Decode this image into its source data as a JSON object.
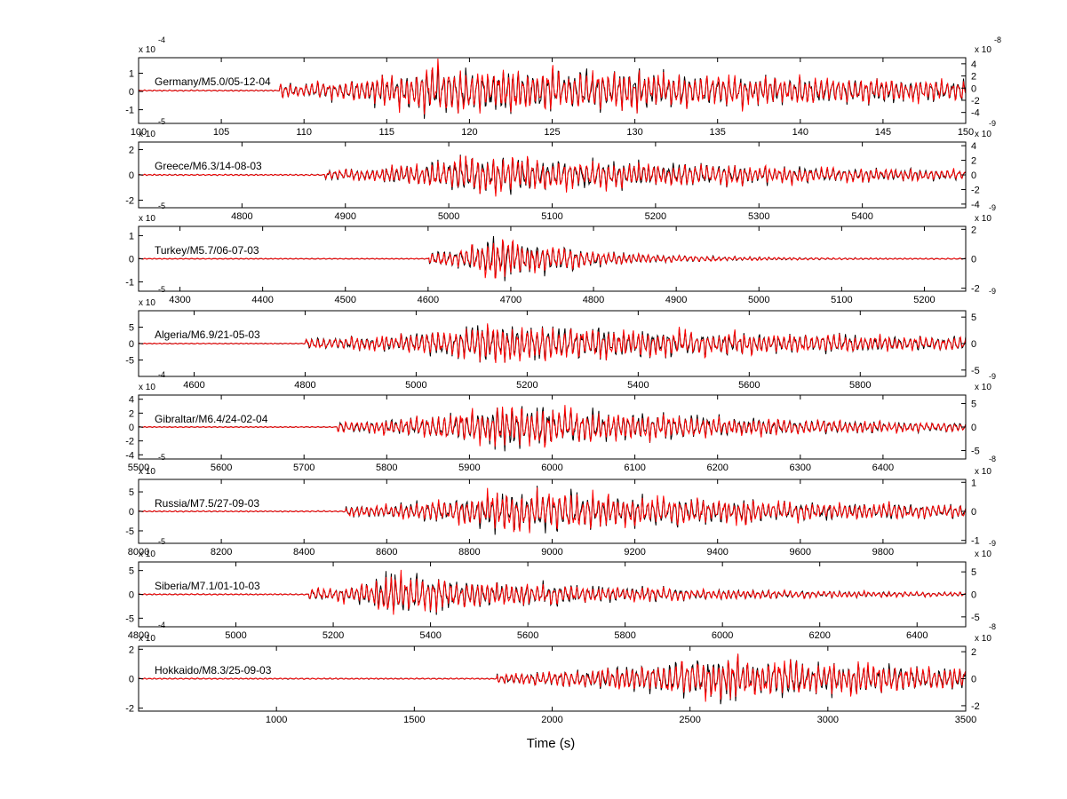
{
  "figure": {
    "xlabel": "Time (s)"
  },
  "colors": {
    "trace_a": "#000000",
    "trace_b": "#ff0000",
    "axis": "#000000",
    "background": "#ffffff"
  },
  "chart_data": [
    {
      "type": "line",
      "title": "Germany/M5.0/05-12-04",
      "xlim": [
        100,
        150
      ],
      "xticks": [
        100,
        105,
        110,
        115,
        120,
        125,
        130,
        135,
        140,
        145,
        150
      ],
      "left_axis": {
        "ylim": [
          -1.75,
          1.85
        ],
        "ticks": [
          -1,
          0,
          1
        ],
        "exp_top": "x 10",
        "exp_top_pow": "-4",
        "exp_bottom": "-5"
      },
      "right_axis": {
        "ylim": [
          -5.8,
          5.0
        ],
        "ticks": [
          -4,
          -2,
          0,
          2,
          4
        ],
        "exp_top": "x 10",
        "exp_top_pow": "-8",
        "exp_bottom": "-9"
      },
      "onset": 108.5,
      "peak": 118.0,
      "decay": 35,
      "noise": 0.02,
      "amp": 1.0
    },
    {
      "type": "line",
      "title": "Greece/M6.3/14-08-03",
      "xlim": [
        4700,
        5500
      ],
      "xticks": [
        4800,
        4900,
        5000,
        5100,
        5200,
        5300,
        5400
      ],
      "left_axis": {
        "ylim": [
          -2.6,
          2.6
        ],
        "ticks": [
          -2,
          0,
          2
        ],
        "exp_top": "x 10",
        "exp_top_pow": "",
        "exp_bottom": "-5"
      },
      "right_axis": {
        "ylim": [
          -4.5,
          4.5
        ],
        "ticks": [
          -4,
          -2,
          0,
          2,
          4
        ],
        "exp_top": "x 10",
        "exp_top_pow": "",
        "exp_bottom": "-9"
      },
      "onset": 4880,
      "peak": 5020,
      "decay": 350,
      "noise": 0.02,
      "amp": 0.75
    },
    {
      "type": "line",
      "title": "Turkey/M5.7/06-07-03",
      "xlim": [
        4250,
        5250
      ],
      "xticks": [
        4300,
        4400,
        4500,
        4600,
        4700,
        4800,
        4900,
        5000,
        5100,
        5200
      ],
      "left_axis": {
        "ylim": [
          -1.4,
          1.4
        ],
        "ticks": [
          -1,
          0,
          1
        ],
        "exp_top": "x 10",
        "exp_top_pow": "",
        "exp_bottom": "-5"
      },
      "right_axis": {
        "ylim": [
          -2.2,
          2.2
        ],
        "ticks": [
          -2,
          0,
          2
        ],
        "exp_top": "x 10",
        "exp_top_pow": "",
        "exp_bottom": "-9"
      },
      "onset": 4600,
      "peak": 4680,
      "decay": 110,
      "noise": 0.015,
      "amp": 0.95
    },
    {
      "type": "line",
      "title": "Algeria/M6.9/21-05-03",
      "xlim": [
        4500,
        5990
      ],
      "xticks": [
        4600,
        4800,
        5000,
        5200,
        5400,
        5600,
        5800
      ],
      "left_axis": {
        "ylim": [
          -10,
          10
        ],
        "ticks": [
          -5,
          0,
          5
        ],
        "exp_top": "x 10",
        "exp_top_pow": "",
        "exp_bottom": "-4"
      },
      "right_axis": {
        "ylim": [
          -6.2,
          6.2
        ],
        "ticks": [
          -5,
          0,
          5
        ],
        "exp_top": "",
        "exp_top_pow": "",
        "exp_bottom": "-9"
      },
      "onset": 4800,
      "peak": 5150,
      "decay": 700,
      "noise": 0.015,
      "amp": 0.8
    },
    {
      "type": "line",
      "title": "Gibraltar/M6.4/24-02-04",
      "xlim": [
        5500,
        6500
      ],
      "xticks": [
        5500,
        5600,
        5700,
        5800,
        5900,
        6000,
        6100,
        6200,
        6300,
        6400
      ],
      "left_axis": {
        "ylim": [
          -4.6,
          4.6
        ],
        "ticks": [
          -4,
          -2,
          0,
          2,
          4
        ],
        "exp_top": "x 10",
        "exp_top_pow": "",
        "exp_bottom": "-5"
      },
      "right_axis": {
        "ylim": [
          -6.8,
          6.8
        ],
        "ticks": [
          -5,
          0,
          5
        ],
        "exp_top": "x 10",
        "exp_top_pow": "",
        "exp_bottom": "-8"
      },
      "onset": 5740,
      "peak": 5940,
      "decay": 320,
      "noise": 0.015,
      "amp": 0.9
    },
    {
      "type": "line",
      "title": "Russia/M7.5/27-09-03",
      "xlim": [
        8000,
        10000
      ],
      "xticks": [
        8000,
        8200,
        8400,
        8600,
        8800,
        9000,
        9200,
        9400,
        9600,
        9800
      ],
      "left_axis": {
        "ylim": [
          -8.2,
          8.2
        ],
        "ticks": [
          -5,
          0,
          5
        ],
        "exp_top": "x 10",
        "exp_top_pow": "",
        "exp_bottom": "-5"
      },
      "right_axis": {
        "ylim": [
          -1.1,
          1.1
        ],
        "ticks": [
          -1,
          0,
          1
        ],
        "exp_top": "x 10",
        "exp_top_pow": "",
        "exp_bottom": "-9"
      },
      "onset": 8500,
      "peak": 8900,
      "decay": 900,
      "noise": 0.02,
      "amp": 0.85
    },
    {
      "type": "line",
      "title": "Siberia/M7.1/01-10-03",
      "xlim": [
        4800,
        6500
      ],
      "xticks": [
        4800,
        5000,
        5200,
        5400,
        5600,
        5800,
        6000,
        6200,
        6400
      ],
      "left_axis": {
        "ylim": [
          -6.8,
          6.8
        ],
        "ticks": [
          -5,
          0,
          5
        ],
        "exp_top": "x 10",
        "exp_top_pow": "",
        "exp_bottom": "-4"
      },
      "right_axis": {
        "ylim": [
          -7.2,
          7.2
        ],
        "ticks": [
          -5,
          0,
          5
        ],
        "exp_top": "x 10",
        "exp_top_pow": "",
        "exp_bottom": "-8"
      },
      "onset": 5150,
      "peak": 5320,
      "decay": 450,
      "noise": 0.02,
      "amp": 0.8
    },
    {
      "type": "line",
      "title": "Hokkaido/M8.3/25-09-03",
      "xlim": [
        500,
        3500
      ],
      "xticks": [
        1000,
        1500,
        2000,
        2500,
        3000,
        3500
      ],
      "left_axis": {
        "ylim": [
          -2.2,
          2.2
        ],
        "ticks": [
          -2,
          0,
          2
        ],
        "exp_top": "x 10",
        "exp_top_pow": "",
        "exp_bottom": ""
      },
      "right_axis": {
        "ylim": [
          -2.4,
          2.4
        ],
        "ticks": [
          -2,
          0,
          2
        ],
        "exp_top": "x 10",
        "exp_top_pow": "",
        "exp_bottom": ""
      },
      "onset": 1800,
      "peak": 2550,
      "decay": 1400,
      "noise": 0.02,
      "amp": 0.85
    }
  ]
}
